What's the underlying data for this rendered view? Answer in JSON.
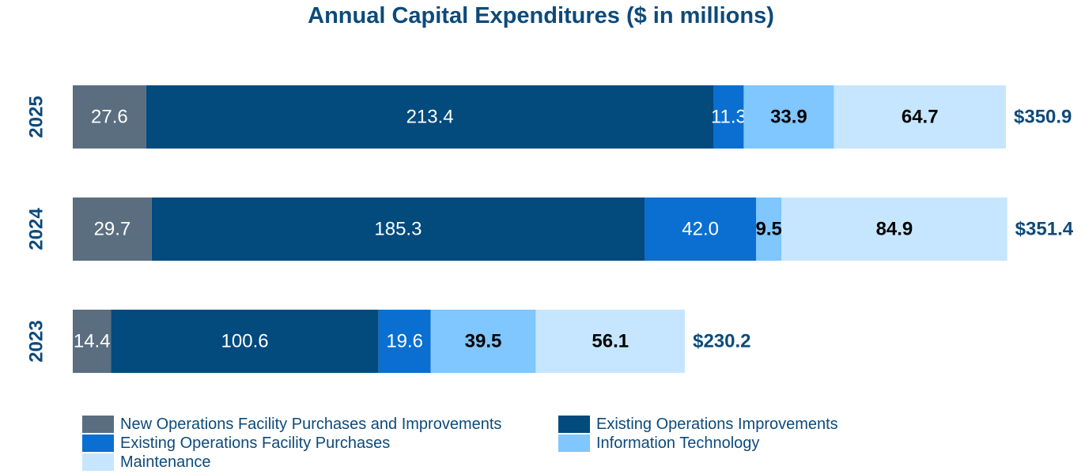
{
  "chart_data": {
    "type": "stacked-bar-horizontal",
    "title": "Annual Capital Expenditures ($ in millions)",
    "categories": [
      "2025",
      "2024",
      "2023"
    ],
    "series": [
      {
        "name": "New Operations Facility Purchases and Improvements",
        "color": "#5a6e80",
        "values": [
          27.6,
          29.7,
          14.4
        ],
        "labels": [
          "27.6",
          "29.7",
          "14.4"
        ]
      },
      {
        "name": "Existing Operations Improvements",
        "color": "#034a7d",
        "values": [
          213.4,
          185.3,
          100.6
        ],
        "labels": [
          "213.4",
          "185.3",
          "100.6"
        ]
      },
      {
        "name": "Existing Operations Facility Purchases",
        "color": "#0a6fd1",
        "values": [
          11.3,
          42.0,
          19.6
        ],
        "labels": [
          "11.3",
          "42.0",
          "19.6"
        ]
      },
      {
        "name": "Information Technology",
        "color": "#80c6ff",
        "values": [
          33.9,
          9.5,
          39.5
        ],
        "labels": [
          "33.9",
          "9.5",
          "39.5"
        ]
      },
      {
        "name": "Maintenance",
        "color": "#c6e6ff",
        "values": [
          64.7,
          84.9,
          56.1
        ],
        "labels": [
          "64.7",
          "84.9",
          "56.1"
        ]
      }
    ],
    "totals": [
      "$350.9",
      "$351.4",
      "$230.2"
    ],
    "xlabel": "",
    "ylabel": "",
    "xlim": [
      0,
      350.9
    ],
    "legend_position": "bottom"
  }
}
